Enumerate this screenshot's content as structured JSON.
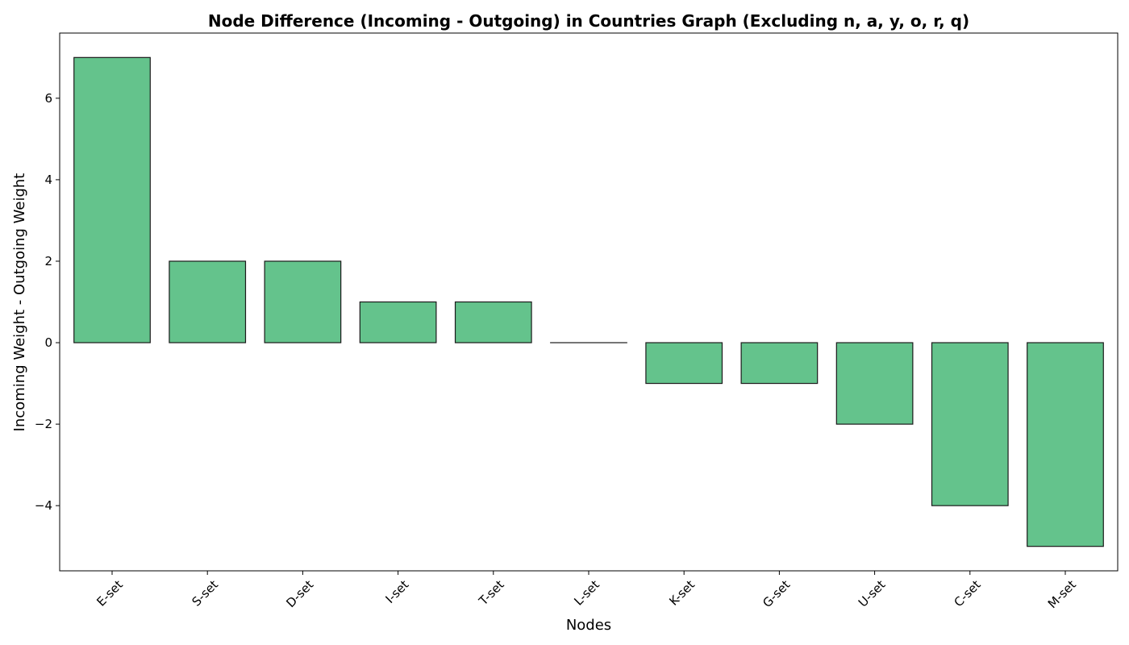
{
  "chart_data": {
    "type": "bar",
    "title": "Node Difference (Incoming - Outgoing) in Countries Graph (Excluding n, a, y, o, r, q)",
    "xlabel": "Nodes",
    "ylabel": "Incoming Weight - Outgoing Weight",
    "categories": [
      "E-set",
      "S-set",
      "D-set",
      "I-set",
      "T-set",
      "L-set",
      "K-set",
      "G-set",
      "U-set",
      "C-set",
      "M-set"
    ],
    "values": [
      7,
      2,
      2,
      1,
      1,
      0,
      -1,
      -1,
      -2,
      -4,
      -5
    ],
    "ylim": [
      -5.6,
      7.6
    ],
    "yticks": [
      -4,
      -2,
      0,
      2,
      4,
      6
    ],
    "ytick_labels": [
      "−4",
      "−2",
      "0",
      "2",
      "4",
      "6"
    ],
    "bar_color": "#64c38c",
    "edge_color": "#1a1a1a",
    "grid": false,
    "legend": "none"
  }
}
